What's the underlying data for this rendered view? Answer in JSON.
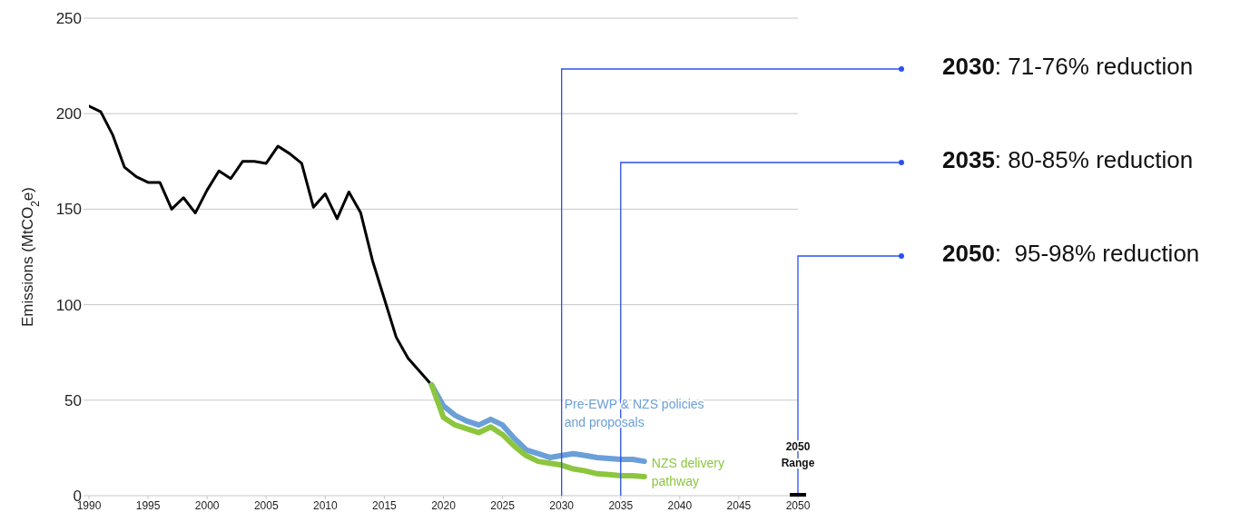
{
  "chart_data": {
    "type": "line",
    "ylabel": "Emissions (MtCO$_{2}$e)",
    "xlim": [
      1990,
      2050
    ],
    "xticks": [
      1990,
      1995,
      2000,
      2005,
      2010,
      2015,
      2020,
      2025,
      2030,
      2035,
      2040,
      2045,
      2050
    ],
    "ylim": [
      0,
      250
    ],
    "yticks": [
      0,
      50,
      100,
      150,
      200,
      250
    ],
    "grid": "y",
    "legend": false,
    "marker": "none",
    "line_style": "solid",
    "series": [
      {
        "color": "#000000",
        "x": [
          1990,
          1991,
          1992,
          1993,
          1994,
          1995,
          1996,
          1997,
          1998,
          1999,
          2000,
          2001,
          2002,
          2003,
          2004,
          2005,
          2006,
          2007,
          2008,
          2009,
          2010,
          2011,
          2012,
          2013,
          2014,
          2015,
          2016,
          2017,
          2018,
          2019
        ],
        "values": [
          204,
          201,
          189,
          172,
          167,
          164,
          164,
          150,
          156,
          148,
          160,
          170,
          166,
          175,
          175,
          174,
          183,
          179,
          174,
          151,
          158,
          145,
          159,
          148,
          123,
          103,
          83,
          72,
          65,
          58
        ]
      },
      {
        "name": "Pre-EWP & NZS policies and proposals",
        "color": "#6a9fd8",
        "x": [
          2019,
          2020,
          2021,
          2022,
          2023,
          2024,
          2025,
          2026,
          2027,
          2028,
          2029,
          2030,
          2031,
          2032,
          2033,
          2034,
          2035,
          2036,
          2037
        ],
        "values": [
          58,
          47,
          42,
          39,
          37,
          40,
          37,
          30,
          24,
          22,
          20,
          21,
          22,
          21,
          20,
          19.5,
          19,
          19,
          18
        ]
      },
      {
        "name": "NZS delivery pathway",
        "color": "#8cc63f",
        "x": [
          2019,
          2020,
          2021,
          2022,
          2023,
          2024,
          2025,
          2026,
          2027,
          2028,
          2029,
          2030,
          2031,
          2032,
          2033,
          2034,
          2035,
          2036,
          2037
        ],
        "values": [
          58,
          41,
          37,
          35,
          33,
          36,
          32,
          26,
          21,
          18,
          17,
          16,
          14,
          13,
          11.5,
          11,
          10.5,
          10.5,
          10
        ]
      }
    ],
    "ref_lines": [
      {
        "axis": "x",
        "value": 2030,
        "label": "2030: 71-76% reduction",
        "color": "#2b50f0"
      },
      {
        "axis": "x",
        "value": 2035,
        "label": "2035: 80-85% reduction",
        "color": "#2b50f0"
      },
      {
        "axis": "x",
        "value": 2050,
        "label": "2050:  95-98% reduction",
        "color": "#2b50f0"
      }
    ],
    "annotations": [
      "2050 Range"
    ]
  }
}
